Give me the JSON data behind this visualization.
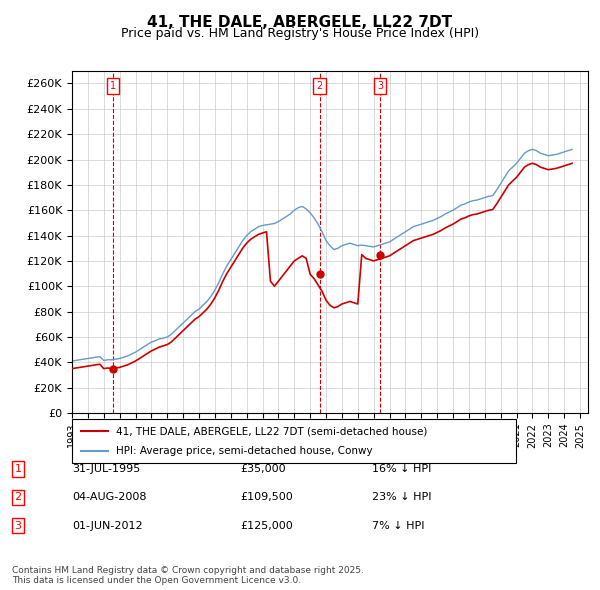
{
  "title": "41, THE DALE, ABERGELE, LL22 7DT",
  "subtitle": "Price paid vs. HM Land Registry's House Price Index (HPI)",
  "legend_line1": "41, THE DALE, ABERGELE, LL22 7DT (semi-detached house)",
  "legend_line2": "HPI: Average price, semi-detached house, Conwy",
  "footnote": "Contains HM Land Registry data © Crown copyright and database right 2025.\nThis data is licensed under the Open Government Licence v3.0.",
  "transactions": [
    {
      "num": 1,
      "date": "31-JUL-1995",
      "price": 35000,
      "pct": "16% ↓ HPI",
      "year": 1995.58
    },
    {
      "num": 2,
      "date": "04-AUG-2008",
      "price": 109500,
      "pct": "23% ↓ HPI",
      "year": 2008.59
    },
    {
      "num": 3,
      "date": "01-JUN-2012",
      "price": 125000,
      "pct": "7% ↓ HPI",
      "year": 2012.42
    }
  ],
  "price_color": "#cc0000",
  "hpi_color": "#6699cc",
  "vline_color": "#cc0000",
  "grid_color": "#cccccc",
  "bg_color": "#ffffff",
  "ylim": [
    0,
    270000
  ],
  "yticks": [
    0,
    20000,
    40000,
    60000,
    80000,
    100000,
    120000,
    140000,
    160000,
    180000,
    200000,
    220000,
    240000,
    260000
  ],
  "xlim_start": 1993,
  "xlim_end": 2025.5,
  "xticks": [
    1993,
    1994,
    1995,
    1996,
    1997,
    1998,
    1999,
    2000,
    2001,
    2002,
    2003,
    2004,
    2005,
    2006,
    2007,
    2008,
    2009,
    2010,
    2011,
    2012,
    2013,
    2014,
    2015,
    2016,
    2017,
    2018,
    2019,
    2020,
    2021,
    2022,
    2023,
    2024,
    2025
  ],
  "hpi_data": {
    "years": [
      1993.0,
      1993.25,
      1993.5,
      1993.75,
      1994.0,
      1994.25,
      1994.5,
      1994.75,
      1995.0,
      1995.25,
      1995.5,
      1995.75,
      1996.0,
      1996.25,
      1996.5,
      1996.75,
      1997.0,
      1997.25,
      1997.5,
      1997.75,
      1998.0,
      1998.25,
      1998.5,
      1998.75,
      1999.0,
      1999.25,
      1999.5,
      1999.75,
      2000.0,
      2000.25,
      2000.5,
      2000.75,
      2001.0,
      2001.25,
      2001.5,
      2001.75,
      2002.0,
      2002.25,
      2002.5,
      2002.75,
      2003.0,
      2003.25,
      2003.5,
      2003.75,
      2004.0,
      2004.25,
      2004.5,
      2004.75,
      2005.0,
      2005.25,
      2005.5,
      2005.75,
      2006.0,
      2006.25,
      2006.5,
      2006.75,
      2007.0,
      2007.25,
      2007.5,
      2007.75,
      2008.0,
      2008.25,
      2008.5,
      2008.75,
      2009.0,
      2009.25,
      2009.5,
      2009.75,
      2010.0,
      2010.25,
      2010.5,
      2010.75,
      2011.0,
      2011.25,
      2011.5,
      2011.75,
      2012.0,
      2012.25,
      2012.5,
      2012.75,
      2013.0,
      2013.25,
      2013.5,
      2013.75,
      2014.0,
      2014.25,
      2014.5,
      2014.75,
      2015.0,
      2015.25,
      2015.5,
      2015.75,
      2016.0,
      2016.25,
      2016.5,
      2016.75,
      2017.0,
      2017.25,
      2017.5,
      2017.75,
      2018.0,
      2018.25,
      2018.5,
      2018.75,
      2019.0,
      2019.25,
      2019.5,
      2019.75,
      2020.0,
      2020.25,
      2020.5,
      2020.75,
      2021.0,
      2021.25,
      2021.5,
      2021.75,
      2022.0,
      2022.25,
      2022.5,
      2022.75,
      2023.0,
      2023.25,
      2023.5,
      2023.75,
      2024.0,
      2024.25,
      2024.5
    ],
    "values": [
      41000,
      41500,
      42000,
      42500,
      43000,
      43500,
      44000,
      44500,
      41500,
      42000,
      42000,
      42500,
      43000,
      44000,
      45000,
      46500,
      48000,
      50000,
      52000,
      54000,
      56000,
      57000,
      58500,
      59000,
      60000,
      62000,
      65000,
      68000,
      71000,
      74000,
      77000,
      80000,
      82000,
      85000,
      88000,
      92000,
      97000,
      103000,
      110000,
      116000,
      121000,
      126000,
      131000,
      136000,
      140000,
      143000,
      145000,
      147000,
      148000,
      148500,
      149000,
      149500,
      151000,
      153000,
      155000,
      157000,
      160000,
      162000,
      163000,
      161000,
      158000,
      154000,
      149000,
      143000,
      136000,
      132000,
      129000,
      130000,
      132000,
      133000,
      134000,
      133000,
      132000,
      132500,
      132000,
      131500,
      131000,
      132000,
      133000,
      134000,
      135000,
      137000,
      139000,
      141000,
      143000,
      145000,
      147000,
      148000,
      149000,
      150000,
      151000,
      152000,
      153500,
      155000,
      157000,
      158500,
      160000,
      162000,
      164000,
      165000,
      166500,
      167500,
      168000,
      169000,
      170000,
      171000,
      171500,
      176000,
      181000,
      186000,
      191000,
      194000,
      197000,
      201000,
      205000,
      207000,
      208000,
      207000,
      205000,
      204000,
      203000,
      203500,
      204000,
      205000,
      206000,
      207000,
      208000
    ]
  },
  "price_data": {
    "years": [
      1993.0,
      1993.25,
      1993.5,
      1993.75,
      1994.0,
      1994.25,
      1994.5,
      1994.75,
      1995.0,
      1995.25,
      1995.5,
      1995.75,
      1996.0,
      1996.25,
      1996.5,
      1996.75,
      1997.0,
      1997.25,
      1997.5,
      1997.75,
      1998.0,
      1998.25,
      1998.5,
      1998.75,
      1999.0,
      1999.25,
      1999.5,
      1999.75,
      2000.0,
      2000.25,
      2000.5,
      2000.75,
      2001.0,
      2001.25,
      2001.5,
      2001.75,
      2002.0,
      2002.25,
      2002.5,
      2002.75,
      2003.0,
      2003.25,
      2003.5,
      2003.75,
      2004.0,
      2004.25,
      2004.5,
      2004.75,
      2005.0,
      2005.25,
      2005.5,
      2005.75,
      2006.0,
      2006.25,
      2006.5,
      2006.75,
      2007.0,
      2007.25,
      2007.5,
      2007.75,
      2008.0,
      2008.25,
      2008.5,
      2008.75,
      2009.0,
      2009.25,
      2009.5,
      2009.75,
      2010.0,
      2010.25,
      2010.5,
      2010.75,
      2011.0,
      2011.25,
      2011.5,
      2011.75,
      2012.0,
      2012.25,
      2012.5,
      2012.75,
      2013.0,
      2013.25,
      2013.5,
      2013.75,
      2014.0,
      2014.25,
      2014.5,
      2014.75,
      2015.0,
      2015.25,
      2015.5,
      2015.75,
      2016.0,
      2016.25,
      2016.5,
      2016.75,
      2017.0,
      2017.25,
      2017.5,
      2017.75,
      2018.0,
      2018.25,
      2018.5,
      2018.75,
      2019.0,
      2019.25,
      2019.5,
      2019.75,
      2020.0,
      2020.25,
      2020.5,
      2020.75,
      2021.0,
      2021.25,
      2021.5,
      2021.75,
      2022.0,
      2022.25,
      2022.5,
      2022.75,
      2023.0,
      2023.25,
      2023.5,
      2023.75,
      2024.0,
      2024.25,
      2024.5
    ],
    "values": [
      35000,
      35500,
      36000,
      36500,
      37000,
      37500,
      38000,
      38500,
      35000,
      35500,
      35000,
      35500,
      36000,
      37000,
      38000,
      39500,
      41000,
      43000,
      45000,
      47000,
      49000,
      50500,
      52000,
      53000,
      54000,
      56000,
      59000,
      62000,
      65000,
      68000,
      71000,
      74000,
      76000,
      79000,
      82000,
      86000,
      91000,
      97000,
      104000,
      110000,
      115000,
      120000,
      125000,
      130000,
      134000,
      137000,
      139000,
      141000,
      142000,
      143000,
      104000,
      100000,
      104000,
      108000,
      112000,
      116000,
      120000,
      122000,
      124000,
      122000,
      109500,
      106000,
      101000,
      96000,
      89000,
      85000,
      83000,
      84000,
      86000,
      87000,
      88000,
      87000,
      86000,
      125000,
      122000,
      121000,
      120000,
      121000,
      122000,
      123000,
      124000,
      126000,
      128000,
      130000,
      132000,
      134000,
      136000,
      137000,
      138000,
      139000,
      140000,
      141000,
      142500,
      144000,
      146000,
      147500,
      149000,
      151000,
      153000,
      154000,
      155500,
      156500,
      157000,
      158000,
      159000,
      160000,
      160500,
      165000,
      170000,
      175000,
      180000,
      183000,
      186000,
      190000,
      194000,
      196000,
      197000,
      196000,
      194000,
      193000,
      192000,
      192500,
      193000,
      194000,
      195000,
      196000,
      197000
    ]
  }
}
